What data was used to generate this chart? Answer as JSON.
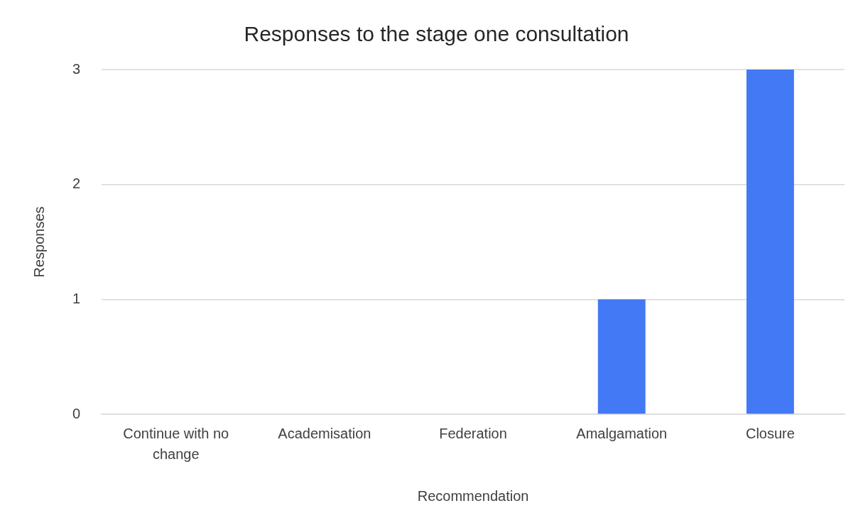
{
  "chart_data": {
    "type": "bar",
    "title": "Responses to the stage one consultation",
    "xlabel": "Recommendation",
    "ylabel": "Responses",
    "categories": [
      "Continue with no change",
      "Academisation",
      "Federation",
      "Amalgamation",
      "Closure"
    ],
    "values": [
      0,
      0,
      0,
      1,
      3
    ],
    "color": "#4479f5",
    "ylim": [
      0,
      3
    ],
    "yticks": [
      0,
      1,
      2,
      3
    ],
    "grid": "y",
    "legend": false
  }
}
